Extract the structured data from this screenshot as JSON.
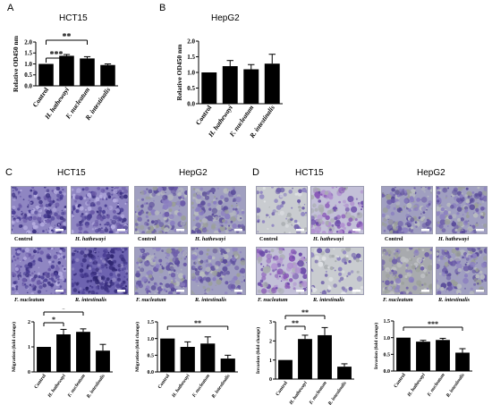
{
  "panel_labels": {
    "A": "A",
    "B": "B",
    "C": "C",
    "D": "D"
  },
  "titles": {
    "A": "HCT15",
    "B": "HepG2",
    "C_left": "HCT15",
    "C_right": "HepG2",
    "D_left": "HCT15",
    "D_right": "HepG2"
  },
  "image_captions": {
    "control": "Control",
    "h_hathewayi": "H. hathewayi",
    "f_nucleatum": "F. nucleatum",
    "r_intestinalis": "R. intestinalis"
  },
  "colors": {
    "bar": "#000000",
    "stain_purple": "#6a5aa8",
    "stain_grey": "#a9adb0",
    "background": "#ffffff"
  },
  "chart_data": [
    {
      "id": "A",
      "type": "bar",
      "title": "HCT15",
      "categories": [
        "Control",
        "H. hathewayi",
        "F. nucleatum",
        "R. intestinalis"
      ],
      "values": [
        1.0,
        1.37,
        1.25,
        0.95
      ],
      "errors": [
        0,
        0.06,
        0.08,
        0.05
      ],
      "ylabel": "Relative OD450 nm",
      "ylim": [
        0,
        2.0
      ],
      "yticks": [
        "0.0",
        "0.5",
        "1.0",
        "1.5",
        "2.0"
      ],
      "significance": [
        {
          "from": 0,
          "to": 1,
          "label": "***"
        },
        {
          "from": 0,
          "to": 2,
          "label": "**"
        }
      ]
    },
    {
      "id": "B",
      "type": "bar",
      "title": "HepG2",
      "categories": [
        "Control",
        "H. hathewayi",
        "F. nucleatum",
        "R. intestinalis"
      ],
      "values": [
        1.0,
        1.2,
        1.1,
        1.28
      ],
      "errors": [
        0,
        0.18,
        0.15,
        0.3
      ],
      "ylabel": "Relative OD450 nm",
      "ylim": [
        0,
        2.0
      ],
      "yticks": [
        "0.0",
        "0.5",
        "1.0",
        "1.5",
        "2.0"
      ],
      "significance": []
    },
    {
      "id": "C_HCT15",
      "type": "bar",
      "categories": [
        "Control",
        "H. hathewayi",
        "F. nucleatum",
        "R. intestinalis"
      ],
      "values": [
        1.0,
        1.5,
        1.6,
        0.85
      ],
      "errors": [
        0,
        0.2,
        0.12,
        0.25
      ],
      "ylabel": "Migration (fold change)",
      "ylim": [
        0,
        2.0
      ],
      "yticks": [
        "0",
        "1",
        "2"
      ],
      "significance": [
        {
          "from": 0,
          "to": 1,
          "label": "*"
        },
        {
          "from": 0,
          "to": 2,
          "label": "*"
        }
      ]
    },
    {
      "id": "C_HepG2",
      "type": "bar",
      "categories": [
        "Control",
        "H. hathewayi",
        "F. nucleatum",
        "R. intestinalis"
      ],
      "values": [
        1.0,
        0.75,
        0.85,
        0.4
      ],
      "errors": [
        0,
        0.15,
        0.2,
        0.1
      ],
      "ylabel": "Migration (fold change)",
      "ylim": [
        0,
        1.5
      ],
      "yticks": [
        "0.0",
        "0.5",
        "1.0",
        "1.5"
      ],
      "significance": [
        {
          "from": 0,
          "to": 3,
          "label": "**"
        }
      ]
    },
    {
      "id": "D_HCT15",
      "type": "bar",
      "categories": [
        "Control",
        "H. hathewayi",
        "F. nucleatum",
        "R. intestinalis"
      ],
      "values": [
        1.0,
        2.1,
        2.3,
        0.65
      ],
      "errors": [
        0,
        0.2,
        0.4,
        0.15
      ],
      "ylabel": "Invasion (fold change)",
      "ylim": [
        0,
        3
      ],
      "yticks": [
        "0",
        "1",
        "2",
        "3"
      ],
      "significance": [
        {
          "from": 0,
          "to": 1,
          "label": "**"
        },
        {
          "from": 0,
          "to": 2,
          "label": "**"
        }
      ]
    },
    {
      "id": "D_HepG2",
      "type": "bar",
      "categories": [
        "Control",
        "H. hathewayi",
        "F. nucleatum",
        "R. intestinalis"
      ],
      "values": [
        1.0,
        0.88,
        0.93,
        0.55
      ],
      "errors": [
        0,
        0.04,
        0.05,
        0.12
      ],
      "ylabel": "Invasion (fold change)",
      "ylim": [
        0,
        1.5
      ],
      "yticks": [
        "0.0",
        "0.5",
        "1.0",
        "1.5"
      ],
      "significance": [
        {
          "from": 0,
          "to": 3,
          "label": "***"
        }
      ]
    }
  ]
}
